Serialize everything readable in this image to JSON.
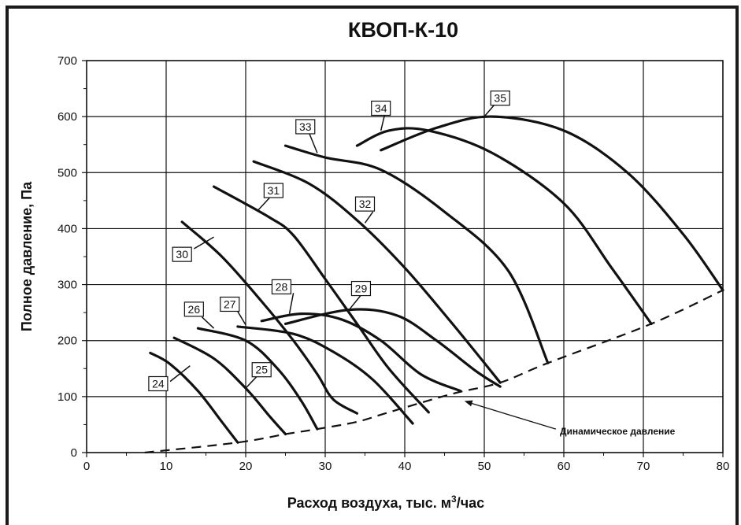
{
  "chart_data": {
    "type": "line",
    "title": "КВОП-К-10",
    "xlabel": "Расход воздуха, тыс. м",
    "xlabel_sup": "3",
    "xlabel_tail": "/час",
    "ylabel": "Полное давление, Па",
    "xlim": [
      0,
      80
    ],
    "ylim": [
      0,
      700
    ],
    "x_ticks": [
      "0",
      "10",
      "20",
      "30",
      "40",
      "50",
      "60",
      "70",
      "80"
    ],
    "y_ticks": [
      "0",
      "100",
      "200",
      "300",
      "400",
      "500",
      "600",
      "700"
    ],
    "grid": true,
    "series": [
      {
        "name": "24",
        "points": [
          [
            8,
            178
          ],
          [
            10.5,
            158
          ],
          [
            14,
            110
          ],
          [
            17,
            55
          ],
          [
            19,
            18
          ]
        ]
      },
      {
        "name": "25",
        "points": [
          [
            11,
            205
          ],
          [
            16,
            168
          ],
          [
            20,
            115
          ],
          [
            23,
            65
          ],
          [
            25,
            33
          ]
        ]
      },
      {
        "name": "26",
        "points": [
          [
            14,
            222
          ],
          [
            20,
            200
          ],
          [
            24,
            150
          ],
          [
            27,
            92
          ],
          [
            29,
            42
          ]
        ]
      },
      {
        "name": "27",
        "points": [
          [
            19,
            225
          ],
          [
            26,
            212
          ],
          [
            31,
            180
          ],
          [
            36,
            130
          ],
          [
            41,
            52
          ]
        ]
      },
      {
        "name": "28",
        "points": [
          [
            22,
            235
          ],
          [
            27,
            248
          ],
          [
            32,
            238
          ],
          [
            37,
            200
          ],
          [
            42,
            140
          ],
          [
            47,
            110
          ]
        ]
      },
      {
        "name": "29",
        "points": [
          [
            25,
            230
          ],
          [
            33,
            255
          ],
          [
            39,
            245
          ],
          [
            44,
            200
          ],
          [
            49,
            145
          ],
          [
            52,
            118
          ]
        ]
      },
      {
        "name": "30",
        "points": [
          [
            12,
            412
          ],
          [
            17,
            350
          ],
          [
            22,
            270
          ],
          [
            26,
            200
          ],
          [
            29,
            140
          ],
          [
            31,
            95
          ],
          [
            34,
            70
          ]
        ]
      },
      {
        "name": "31",
        "points": [
          [
            16,
            475
          ],
          [
            23,
            420
          ],
          [
            26,
            388
          ],
          [
            30,
            310
          ],
          [
            34,
            230
          ],
          [
            38,
            150
          ],
          [
            43,
            72
          ]
        ]
      },
      {
        "name": "32",
        "points": [
          [
            21,
            520
          ],
          [
            28,
            480
          ],
          [
            34,
            415
          ],
          [
            40,
            330
          ],
          [
            46,
            230
          ],
          [
            52,
            125
          ]
        ]
      },
      {
        "name": "33",
        "points": [
          [
            25,
            548
          ],
          [
            30,
            527
          ],
          [
            37,
            505
          ],
          [
            45,
            430
          ],
          [
            53,
            325
          ],
          [
            58,
            160
          ]
        ]
      },
      {
        "name": "34",
        "points": [
          [
            34,
            548
          ],
          [
            38,
            575
          ],
          [
            43,
            575
          ],
          [
            51,
            535
          ],
          [
            60,
            445
          ],
          [
            66,
            330
          ],
          [
            71,
            230
          ]
        ]
      },
      {
        "name": "35",
        "points": [
          [
            37,
            540
          ],
          [
            44,
            580
          ],
          [
            51,
            600
          ],
          [
            60,
            575
          ],
          [
            68,
            500
          ],
          [
            75,
            390
          ],
          [
            80,
            290
          ]
        ]
      }
    ],
    "dynamic_pressure": {
      "name": "Динамическое давление",
      "points": [
        [
          7.3,
          0
        ],
        [
          19,
          18
        ],
        [
          25,
          33
        ],
        [
          29,
          42
        ],
        [
          34,
          55
        ],
        [
          38,
          72
        ],
        [
          46,
          105
        ],
        [
          52,
          125
        ],
        [
          58,
          160
        ],
        [
          71,
          230
        ],
        [
          80,
          290
        ]
      ]
    },
    "label_positions_data": {
      "24": [
        9,
        123
      ],
      "25": [
        22,
        148
      ],
      "26": [
        13.5,
        256
      ],
      "27": [
        18,
        265
      ],
      "28": [
        24.5,
        296
      ],
      "29": [
        34.5,
        293
      ],
      "30": [
        12,
        354
      ],
      "31": [
        23.5,
        468
      ],
      "32": [
        35,
        444
      ],
      "33": [
        27.5,
        582
      ],
      "34": [
        37,
        615
      ],
      "35": [
        52,
        633
      ]
    },
    "label_leaders_data": {
      "24": [
        [
          10.5,
          127
        ],
        [
          13,
          155
        ]
      ],
      "25": [
        [
          22,
          145
        ],
        [
          20,
          115
        ]
      ],
      "26": [
        [
          14.5,
          242
        ],
        [
          16,
          222
        ]
      ],
      "27": [
        [
          19,
          252
        ],
        [
          20,
          228
        ]
      ],
      "28": [
        [
          26,
          285
        ],
        [
          25.5,
          248
        ]
      ],
      "29": [
        [
          35,
          290
        ],
        [
          33,
          255
        ]
      ],
      "30": [
        [
          13.5,
          364
        ],
        [
          16,
          385
        ]
      ],
      "31": [
        [
          23,
          455
        ],
        [
          21.5,
          432
        ]
      ],
      "32": [
        [
          36,
          430
        ],
        [
          35,
          410
        ]
      ],
      "33": [
        [
          28,
          570
        ],
        [
          29,
          535
        ]
      ],
      "34": [
        [
          37.5,
          605
        ],
        [
          37,
          575
        ]
      ],
      "35": [
        [
          51.5,
          625
        ],
        [
          50,
          600
        ]
      ]
    },
    "annotation": {
      "text": "Динамическое давление",
      "text_at": [
        59.5,
        38
      ],
      "arrow_from": [
        59,
        42
      ],
      "arrow_to": [
        47.5,
        92
      ]
    }
  }
}
